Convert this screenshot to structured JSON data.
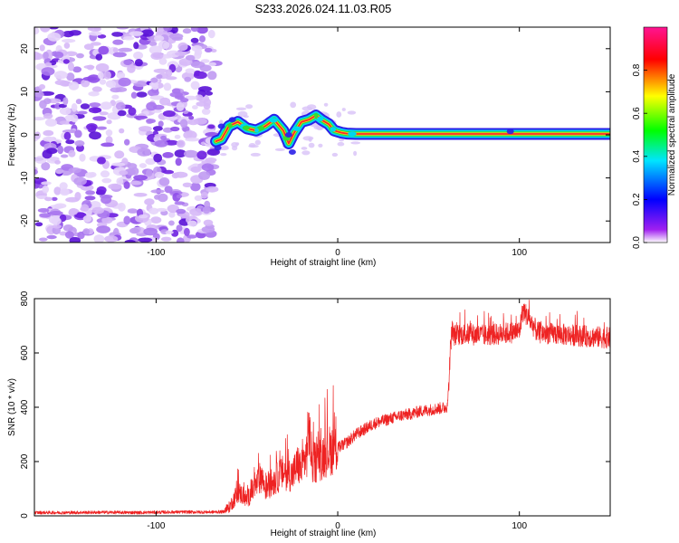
{
  "figure_title": "S233.2026.024.11.03.R05",
  "chart_data": [
    {
      "type": "heatmap",
      "name": "spectrogram",
      "xlabel": "Height of straight line (km)",
      "ylabel": "Frequency (Hz)",
      "xlim": [
        -167,
        150
      ],
      "ylim": [
        -25,
        25
      ],
      "x_ticks": [
        -100,
        0,
        100
      ],
      "y_ticks": [
        -20,
        -10,
        0,
        10,
        20
      ],
      "x_tick_labels": [
        "-100",
        "0",
        "100"
      ],
      "y_tick_labels": [
        "-20",
        "-10",
        "0",
        "10",
        "20"
      ],
      "noise_region_x": [
        -167,
        -67
      ],
      "ridge": {
        "x": [
          -67,
          -64,
          -60,
          -55,
          -50,
          -45,
          -40,
          -35,
          -30,
          -27,
          -24,
          -20,
          -16,
          -12,
          -9,
          -5,
          -2,
          2,
          5,
          10,
          20,
          40,
          60,
          80,
          100,
          120,
          150
        ],
        "y": [
          -1.5,
          -1.0,
          2.0,
          3.0,
          1.5,
          1.0,
          2.0,
          3.5,
          1.0,
          -2.0,
          0.5,
          3.0,
          3.5,
          4.5,
          3.5,
          2.5,
          1.0,
          0.5,
          0.3,
          0.2,
          0.2,
          0.2,
          0.2,
          0.2,
          0.2,
          0.2,
          0.2
        ]
      },
      "colorbar": {
        "label": "Normalized spectral amplitude",
        "range": [
          0.0,
          1.0
        ],
        "ticks": [
          "0.0",
          "0.2",
          "0.4",
          "0.6",
          "0.8"
        ],
        "colors": [
          "#ffffff",
          "#a020f0",
          "#0000ff",
          "#00e5ff",
          "#00ff00",
          "#ffff00",
          "#ff0000",
          "#ff1493"
        ]
      }
    },
    {
      "type": "line",
      "name": "snr",
      "xlabel": "Height of straight line (km)",
      "ylabel": "SNR (10 * v/v)",
      "xlim": [
        -167,
        150
      ],
      "ylim": [
        0,
        800
      ],
      "x_ticks": [
        -100,
        0,
        100
      ],
      "y_ticks": [
        0,
        200,
        400,
        600,
        800
      ],
      "x_tick_labels": [
        "-100",
        "0",
        "100"
      ],
      "y_tick_labels": [
        "0",
        "200",
        "400",
        "600",
        "800"
      ],
      "color": "#ee2222",
      "series": [
        {
          "name": "SNR",
          "x": [
            -167,
            -150,
            -130,
            -110,
            -90,
            -70,
            -63,
            -60,
            -58,
            -55,
            -50,
            -45,
            -42,
            -40,
            -35,
            -30,
            -25,
            -22,
            -20,
            -17,
            -16,
            -14,
            -10,
            -5,
            0,
            5,
            10,
            15,
            20,
            25,
            30,
            35,
            40,
            45,
            50,
            55,
            60,
            61,
            62,
            63,
            70,
            80,
            90,
            100,
            102,
            110,
            120,
            130,
            140,
            150
          ],
          "y": [
            12,
            12,
            13,
            12,
            14,
            14,
            15,
            30,
            50,
            90,
            60,
            110,
            150,
            100,
            130,
            160,
            150,
            190,
            170,
            230,
            330,
            190,
            210,
            240,
            250,
            270,
            300,
            320,
            340,
            350,
            360,
            370,
            375,
            385,
            390,
            395,
            400,
            460,
            620,
            665,
            670,
            665,
            670,
            680,
            760,
            675,
            670,
            665,
            660,
            655
          ]
        }
      ]
    }
  ]
}
